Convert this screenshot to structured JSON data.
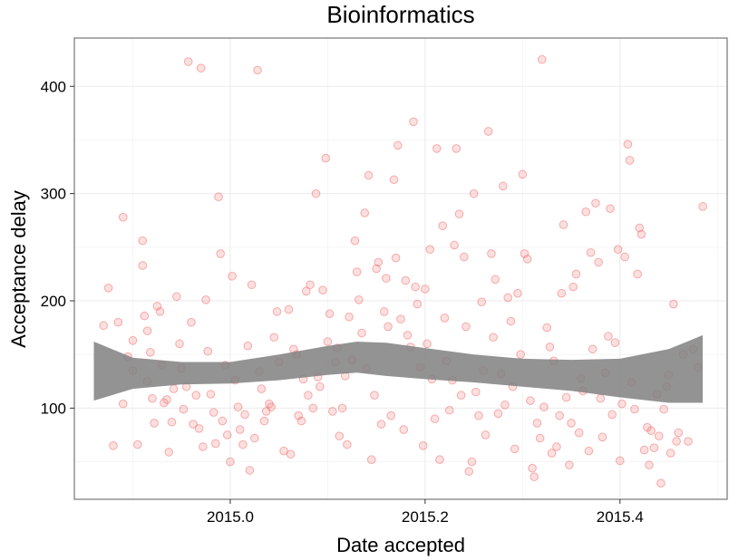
{
  "chart_data": {
    "type": "scatter",
    "title": "Bioinformatics",
    "xlabel": "Date accepted",
    "ylabel": "Acceptance delay",
    "xlim": [
      2014.84,
      2015.51
    ],
    "ylim": [
      15,
      445
    ],
    "x_ticks": [
      2015.0,
      2015.2,
      2015.4
    ],
    "x_tick_labels": [
      "2015.0",
      "2015.2",
      "2015.4"
    ],
    "y_ticks": [
      100,
      200,
      300,
      400
    ],
    "y_tick_labels": [
      "100",
      "200",
      "300",
      "400"
    ],
    "grid": true,
    "point_color": "#f07070",
    "band_color": "#808080",
    "points": [
      [
        2014.87,
        177
      ],
      [
        2014.875,
        212
      ],
      [
        2014.88,
        65
      ],
      [
        2014.885,
        180
      ],
      [
        2014.89,
        278
      ],
      [
        2014.89,
        104
      ],
      [
        2014.895,
        148
      ],
      [
        2014.9,
        163
      ],
      [
        2014.9,
        135
      ],
      [
        2014.905,
        66
      ],
      [
        2014.91,
        233
      ],
      [
        2014.91,
        256
      ],
      [
        2014.912,
        186
      ],
      [
        2014.915,
        172
      ],
      [
        2014.915,
        125
      ],
      [
        2014.918,
        152
      ],
      [
        2014.92,
        109
      ],
      [
        2014.922,
        86
      ],
      [
        2014.925,
        195
      ],
      [
        2014.928,
        190
      ],
      [
        2014.93,
        140
      ],
      [
        2014.932,
        105
      ],
      [
        2014.935,
        108
      ],
      [
        2014.937,
        59
      ],
      [
        2014.94,
        87
      ],
      [
        2014.942,
        118
      ],
      [
        2014.945,
        204
      ],
      [
        2014.948,
        160
      ],
      [
        2014.95,
        137
      ],
      [
        2014.952,
        99
      ],
      [
        2014.955,
        120
      ],
      [
        2014.957,
        423
      ],
      [
        2014.96,
        180
      ],
      [
        2014.962,
        85
      ],
      [
        2014.965,
        112
      ],
      [
        2014.968,
        81
      ],
      [
        2014.97,
        417
      ],
      [
        2014.972,
        64
      ],
      [
        2014.975,
        201
      ],
      [
        2014.977,
        153
      ],
      [
        2014.98,
        113
      ],
      [
        2014.983,
        96
      ],
      [
        2014.985,
        67
      ],
      [
        2014.988,
        297
      ],
      [
        2014.99,
        244
      ],
      [
        2014.992,
        88
      ],
      [
        2014.995,
        140
      ],
      [
        2014.997,
        75
      ],
      [
        2015.0,
        50
      ],
      [
        2015.002,
        223
      ],
      [
        2015.005,
        126
      ],
      [
        2015.008,
        101
      ],
      [
        2015.01,
        80
      ],
      [
        2015.013,
        66
      ],
      [
        2015.015,
        94
      ],
      [
        2015.018,
        158
      ],
      [
        2015.02,
        42
      ],
      [
        2015.022,
        215
      ],
      [
        2015.025,
        72
      ],
      [
        2015.028,
        415
      ],
      [
        2015.03,
        134
      ],
      [
        2015.032,
        118
      ],
      [
        2015.035,
        88
      ],
      [
        2015.037,
        97
      ],
      [
        2015.04,
        104
      ],
      [
        2015.042,
        101
      ],
      [
        2015.045,
        166
      ],
      [
        2015.048,
        190
      ],
      [
        2015.05,
        143
      ],
      [
        2015.055,
        60
      ],
      [
        2015.06,
        192
      ],
      [
        2015.062,
        57
      ],
      [
        2015.065,
        155
      ],
      [
        2015.068,
        150
      ],
      [
        2015.07,
        93
      ],
      [
        2015.073,
        88
      ],
      [
        2015.075,
        127
      ],
      [
        2015.078,
        209
      ],
      [
        2015.08,
        112
      ],
      [
        2015.082,
        215
      ],
      [
        2015.085,
        100
      ],
      [
        2015.088,
        300
      ],
      [
        2015.09,
        129
      ],
      [
        2015.092,
        120
      ],
      [
        2015.095,
        210
      ],
      [
        2015.098,
        333
      ],
      [
        2015.1,
        162
      ],
      [
        2015.102,
        188
      ],
      [
        2015.105,
        97
      ],
      [
        2015.108,
        143
      ],
      [
        2015.11,
        156
      ],
      [
        2015.112,
        74
      ],
      [
        2015.115,
        100
      ],
      [
        2015.118,
        130
      ],
      [
        2015.12,
        66
      ],
      [
        2015.122,
        185
      ],
      [
        2015.125,
        145
      ],
      [
        2015.128,
        256
      ],
      [
        2015.13,
        227
      ],
      [
        2015.132,
        201
      ],
      [
        2015.135,
        170
      ],
      [
        2015.138,
        282
      ],
      [
        2015.14,
        137
      ],
      [
        2015.142,
        317
      ],
      [
        2015.145,
        52
      ],
      [
        2015.148,
        112
      ],
      [
        2015.15,
        230
      ],
      [
        2015.152,
        236
      ],
      [
        2015.155,
        85
      ],
      [
        2015.158,
        190
      ],
      [
        2015.16,
        221
      ],
      [
        2015.162,
        176
      ],
      [
        2015.165,
        93
      ],
      [
        2015.168,
        313
      ],
      [
        2015.17,
        240
      ],
      [
        2015.172,
        345
      ],
      [
        2015.175,
        183
      ],
      [
        2015.178,
        80
      ],
      [
        2015.18,
        219
      ],
      [
        2015.182,
        168
      ],
      [
        2015.185,
        157
      ],
      [
        2015.188,
        367
      ],
      [
        2015.19,
        213
      ],
      [
        2015.192,
        197
      ],
      [
        2015.195,
        138
      ],
      [
        2015.198,
        65
      ],
      [
        2015.2,
        211
      ],
      [
        2015.202,
        160
      ],
      [
        2015.205,
        248
      ],
      [
        2015.207,
        127
      ],
      [
        2015.21,
        90
      ],
      [
        2015.212,
        342
      ],
      [
        2015.215,
        52
      ],
      [
        2015.218,
        270
      ],
      [
        2015.22,
        184
      ],
      [
        2015.222,
        144
      ],
      [
        2015.225,
        98
      ],
      [
        2015.228,
        126
      ],
      [
        2015.23,
        252
      ],
      [
        2015.232,
        342
      ],
      [
        2015.235,
        281
      ],
      [
        2015.237,
        112
      ],
      [
        2015.24,
        241
      ],
      [
        2015.242,
        176
      ],
      [
        2015.245,
        41
      ],
      [
        2015.248,
        50
      ],
      [
        2015.25,
        300
      ],
      [
        2015.252,
        115
      ],
      [
        2015.255,
        93
      ],
      [
        2015.258,
        199
      ],
      [
        2015.26,
        135
      ],
      [
        2015.262,
        75
      ],
      [
        2015.265,
        358
      ],
      [
        2015.268,
        244
      ],
      [
        2015.27,
        166
      ],
      [
        2015.272,
        220
      ],
      [
        2015.275,
        95
      ],
      [
        2015.278,
        132
      ],
      [
        2015.28,
        307
      ],
      [
        2015.282,
        103
      ],
      [
        2015.285,
        203
      ],
      [
        2015.288,
        181
      ],
      [
        2015.29,
        120
      ],
      [
        2015.292,
        62
      ],
      [
        2015.295,
        207
      ],
      [
        2015.298,
        150
      ],
      [
        2015.3,
        318
      ],
      [
        2015.302,
        244
      ],
      [
        2015.305,
        239
      ],
      [
        2015.308,
        107
      ],
      [
        2015.31,
        44
      ],
      [
        2015.312,
        36
      ],
      [
        2015.315,
        86
      ],
      [
        2015.318,
        72
      ],
      [
        2015.32,
        425
      ],
      [
        2015.322,
        101
      ],
      [
        2015.325,
        175
      ],
      [
        2015.328,
        157
      ],
      [
        2015.33,
        58
      ],
      [
        2015.332,
        144
      ],
      [
        2015.335,
        64
      ],
      [
        2015.338,
        93
      ],
      [
        2015.34,
        207
      ],
      [
        2015.342,
        271
      ],
      [
        2015.345,
        110
      ],
      [
        2015.348,
        47
      ],
      [
        2015.35,
        86
      ],
      [
        2015.352,
        213
      ],
      [
        2015.355,
        225
      ],
      [
        2015.358,
        77
      ],
      [
        2015.36,
        128
      ],
      [
        2015.362,
        116
      ],
      [
        2015.365,
        283
      ],
      [
        2015.368,
        60
      ],
      [
        2015.37,
        245
      ],
      [
        2015.372,
        155
      ],
      [
        2015.375,
        291
      ],
      [
        2015.378,
        236
      ],
      [
        2015.38,
        109
      ],
      [
        2015.382,
        73
      ],
      [
        2015.385,
        133
      ],
      [
        2015.388,
        167
      ],
      [
        2015.39,
        286
      ],
      [
        2015.392,
        94
      ],
      [
        2015.395,
        161
      ],
      [
        2015.398,
        248
      ],
      [
        2015.4,
        51
      ],
      [
        2015.402,
        104
      ],
      [
        2015.405,
        241
      ],
      [
        2015.408,
        346
      ],
      [
        2015.41,
        331
      ],
      [
        2015.412,
        124
      ],
      [
        2015.415,
        99
      ],
      [
        2015.418,
        225
      ],
      [
        2015.42,
        268
      ],
      [
        2015.422,
        262
      ],
      [
        2015.425,
        61
      ],
      [
        2015.428,
        82
      ],
      [
        2015.43,
        47
      ],
      [
        2015.432,
        79
      ],
      [
        2015.435,
        63
      ],
      [
        2015.438,
        113
      ],
      [
        2015.44,
        74
      ],
      [
        2015.442,
        30
      ],
      [
        2015.445,
        99
      ],
      [
        2015.448,
        120
      ],
      [
        2015.45,
        131
      ],
      [
        2015.452,
        58
      ],
      [
        2015.455,
        197
      ],
      [
        2015.458,
        69
      ],
      [
        2015.46,
        77
      ],
      [
        2015.465,
        150
      ],
      [
        2015.47,
        69
      ],
      [
        2015.475,
        155
      ],
      [
        2015.48,
        138
      ],
      [
        2015.485,
        288
      ]
    ],
    "smooth": {
      "x": [
        2014.86,
        2014.9,
        2014.95,
        2015.0,
        2015.05,
        2015.1,
        2015.13,
        2015.16,
        2015.2,
        2015.25,
        2015.3,
        2015.35,
        2015.4,
        2015.45,
        2015.485
      ],
      "lower": [
        107,
        118,
        122,
        123,
        126,
        131,
        133,
        130,
        127,
        124,
        120,
        116,
        110,
        105,
        105
      ],
      "upper": [
        162,
        147,
        143,
        143,
        150,
        158,
        162,
        161,
        156,
        150,
        146,
        145,
        146,
        155,
        168
      ]
    }
  }
}
